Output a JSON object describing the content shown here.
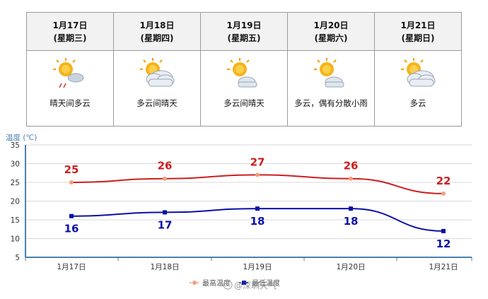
{
  "forecast": {
    "days": [
      {
        "date": "1月17日",
        "weekday": "(星期三)",
        "icon": "sun-cloud-rain-icon",
        "desc": "晴天间多云"
      },
      {
        "date": "1月18日",
        "weekday": "(星期四)",
        "icon": "cloud-sun-icon",
        "desc": "多云间晴天"
      },
      {
        "date": "1月19日",
        "weekday": "(星期五)",
        "icon": "sun-cloud-icon",
        "desc": "多云间晴天"
      },
      {
        "date": "1月20日",
        "weekday": "(星期六)",
        "icon": "sun-cloud-icon",
        "desc": "多云，偶有分散小雨"
      },
      {
        "date": "1月21日",
        "weekday": "(星期日)",
        "icon": "cloud-sun-icon",
        "desc": "多云"
      }
    ]
  },
  "colors": {
    "high": "#cc1f1f",
    "low": "#0a10a8",
    "high_marker": "#f0a07a",
    "low_marker": "#0a10a8",
    "axis": "#4a7fb0",
    "grid": "#d8d8d8"
  },
  "chart_data": {
    "type": "line",
    "ylabel": "温度",
    "yunit": "(℃)",
    "categories": [
      "1月17日",
      "1月18日",
      "1月19日",
      "1月20日",
      "1月21日"
    ],
    "ylim": [
      5,
      35
    ],
    "yticks": [
      5,
      10,
      15,
      20,
      25,
      30,
      35
    ],
    "grid": true,
    "legend": "bottom",
    "series": [
      {
        "name": "最高温度",
        "key": "high",
        "values": [
          25,
          26,
          27,
          26,
          22
        ]
      },
      {
        "name": "最低温度",
        "key": "low",
        "values": [
          16,
          17,
          18,
          18,
          12
        ]
      }
    ],
    "watermark": "@深圳天气"
  }
}
